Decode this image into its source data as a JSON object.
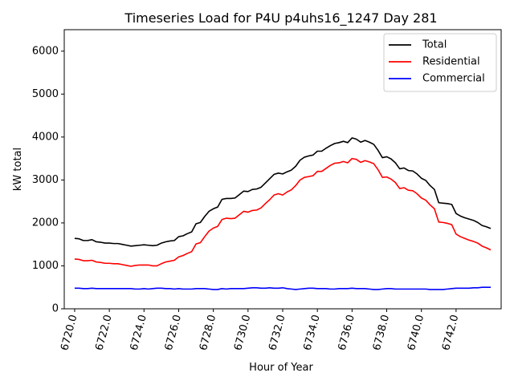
{
  "chart_data": {
    "type": "line",
    "title": "Timeseries Load for P4U p4uhs16_1247  Day 281",
    "xlabel": "Hour of Year",
    "ylabel": "kW total",
    "xlim": [
      6719.4,
      6744.6
    ],
    "ylim": [
      0,
      6500
    ],
    "xticks": [
      "6720.0",
      "6722.0",
      "6724.0",
      "6726.0",
      "6728.0",
      "6730.0",
      "6732.0",
      "6734.0",
      "6736.0",
      "6738.0",
      "6740.0",
      "6742.0"
    ],
    "xtick_values": [
      6720,
      6722,
      6724,
      6726,
      6728,
      6730,
      6732,
      6734,
      6736,
      6738,
      6740,
      6742
    ],
    "yticks": [
      "0",
      "1000",
      "2000",
      "3000",
      "4000",
      "5000",
      "6000"
    ],
    "ytick_values": [
      0,
      1000,
      2000,
      3000,
      4000,
      5000,
      6000
    ],
    "legend_position": "top-right",
    "x_start": 6720,
    "x_step": 0.25,
    "series": [
      {
        "name": "Total",
        "color": "#000000",
        "values": [
          1640,
          1630,
          1590,
          1590,
          1610,
          1560,
          1550,
          1530,
          1530,
          1520,
          1520,
          1500,
          1480,
          1460,
          1470,
          1480,
          1490,
          1480,
          1470,
          1480,
          1530,
          1560,
          1580,
          1590,
          1680,
          1700,
          1750,
          1790,
          1980,
          2010,
          2150,
          2270,
          2330,
          2370,
          2550,
          2570,
          2570,
          2580,
          2660,
          2740,
          2730,
          2780,
          2790,
          2830,
          2930,
          3030,
          3130,
          3160,
          3140,
          3190,
          3230,
          3320,
          3460,
          3530,
          3560,
          3580,
          3670,
          3670,
          3740,
          3800,
          3850,
          3870,
          3900,
          3870,
          3980,
          3950,
          3880,
          3920,
          3880,
          3830,
          3690,
          3520,
          3540,
          3490,
          3400,
          3260,
          3280,
          3220,
          3210,
          3140,
          3040,
          2990,
          2870,
          2780,
          2470,
          2460,
          2450,
          2430,
          2220,
          2160,
          2120,
          2090,
          2060,
          2010,
          1940,
          1910,
          1870
        ]
      },
      {
        "name": "Residential",
        "color": "#ff0000",
        "values": [
          1160,
          1150,
          1120,
          1120,
          1130,
          1090,
          1080,
          1060,
          1060,
          1050,
          1050,
          1030,
          1010,
          990,
          1010,
          1020,
          1020,
          1020,
          1000,
          1000,
          1050,
          1090,
          1110,
          1130,
          1210,
          1240,
          1290,
          1330,
          1510,
          1540,
          1680,
          1810,
          1880,
          1920,
          2080,
          2110,
          2100,
          2110,
          2190,
          2270,
          2250,
          2290,
          2300,
          2350,
          2450,
          2540,
          2650,
          2680,
          2650,
          2720,
          2770,
          2870,
          3000,
          3060,
          3080,
          3100,
          3200,
          3200,
          3270,
          3340,
          3390,
          3400,
          3430,
          3400,
          3500,
          3480,
          3410,
          3450,
          3420,
          3380,
          3240,
          3060,
          3070,
          3020,
          2940,
          2800,
          2820,
          2760,
          2750,
          2680,
          2580,
          2530,
          2420,
          2330,
          2020,
          2010,
          1990,
          1960,
          1740,
          1680,
          1640,
          1600,
          1570,
          1530,
          1460,
          1420,
          1370
        ]
      },
      {
        "name": "Commercial",
        "color": "#0000ff",
        "values": [
          480,
          480,
          470,
          470,
          480,
          470,
          470,
          470,
          470,
          470,
          470,
          470,
          470,
          470,
          460,
          460,
          470,
          460,
          470,
          480,
          480,
          470,
          470,
          460,
          470,
          460,
          460,
          460,
          470,
          470,
          470,
          460,
          450,
          450,
          470,
          460,
          470,
          470,
          470,
          470,
          480,
          490,
          490,
          480,
          480,
          490,
          480,
          480,
          490,
          470,
          460,
          450,
          460,
          470,
          480,
          480,
          470,
          470,
          470,
          460,
          460,
          470,
          470,
          470,
          480,
          470,
          470,
          470,
          460,
          450,
          450,
          460,
          470,
          470,
          460,
          460,
          460,
          460,
          460,
          460,
          460,
          460,
          450,
          450,
          450,
          450,
          460,
          470,
          480,
          480,
          480,
          480,
          490,
          490,
          500,
          500,
          500
        ]
      }
    ]
  }
}
